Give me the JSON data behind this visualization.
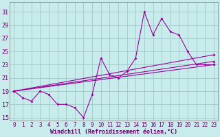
{
  "xlabel": "Windchill (Refroidissement éolien,°C)",
  "xlim": [
    -0.5,
    23.5
  ],
  "ylim": [
    14.5,
    32.5
  ],
  "yticks": [
    15,
    17,
    19,
    21,
    23,
    25,
    27,
    29,
    31
  ],
  "xticks": [
    0,
    1,
    2,
    3,
    4,
    5,
    6,
    7,
    8,
    9,
    10,
    11,
    12,
    13,
    14,
    15,
    16,
    17,
    18,
    19,
    20,
    21,
    22,
    23
  ],
  "bg_color": "#c8ecec",
  "grid_color": "#a0c8c8",
  "line_color": "#990099",
  "series": [
    {
      "x": [
        0,
        1,
        2,
        3,
        4,
        5,
        6,
        7,
        8,
        9,
        10,
        11,
        12,
        13,
        14,
        15,
        16,
        17,
        18,
        19,
        20,
        21,
        22,
        23
      ],
      "y": [
        19,
        18,
        17.5,
        19,
        18.5,
        17,
        17,
        16.5,
        15,
        18.5,
        24,
        21.5,
        21,
        22,
        24,
        31,
        27.5,
        30,
        28,
        27.5,
        25,
        23,
        23,
        23
      ]
    },
    {
      "x": [
        0,
        23
      ],
      "y": [
        19.0,
        24.5
      ]
    },
    {
      "x": [
        0,
        23
      ],
      "y": [
        19.0,
        23.5
      ]
    },
    {
      "x": [
        0,
        23
      ],
      "y": [
        19.0,
        23.0
      ]
    }
  ]
}
